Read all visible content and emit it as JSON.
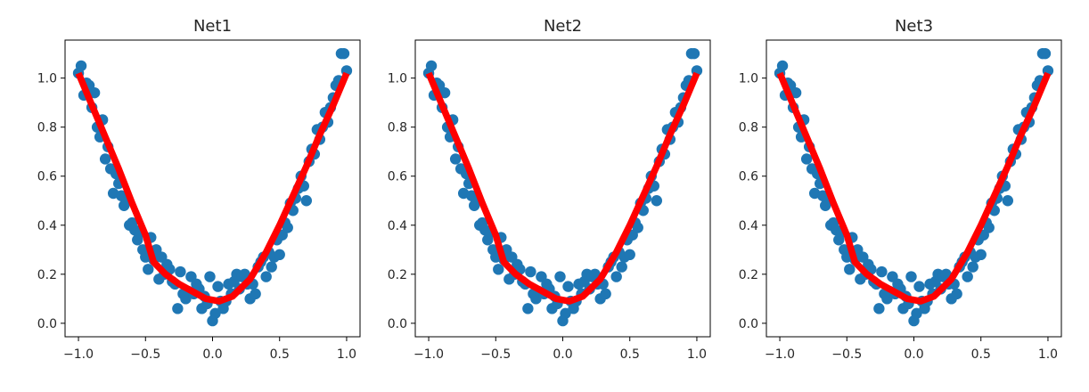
{
  "chart_data": [
    {
      "type": "scatter",
      "title": "Net1",
      "xlabel": "",
      "ylabel": "",
      "xlim": [
        -1.1,
        1.1
      ],
      "ylim": [
        -0.055,
        1.155
      ],
      "xticks": [
        -1.0,
        -0.5,
        0.0,
        0.5,
        1.0
      ],
      "xtick_labels": [
        "−1.0",
        "−0.5",
        "0.0",
        "0.5",
        "1.0"
      ],
      "yticks": [
        0.0,
        0.2,
        0.4,
        0.6,
        0.8,
        1.0
      ],
      "ytick_labels": [
        "0.0",
        "0.2",
        "0.4",
        "0.6",
        "0.8",
        "1.0"
      ],
      "grid": false,
      "series": [
        {
          "kind": "scatter",
          "color": "#1f77b4",
          "x": [
            -1.0,
            -0.98,
            -0.96,
            -0.94,
            -0.92,
            -0.9,
            -0.88,
            -0.86,
            -0.84,
            -0.82,
            -0.8,
            -0.78,
            -0.76,
            -0.74,
            -0.72,
            -0.7,
            -0.68,
            -0.66,
            -0.64,
            -0.62,
            -0.6,
            -0.58,
            -0.56,
            -0.54,
            -0.52,
            -0.5,
            -0.48,
            -0.46,
            -0.44,
            -0.42,
            -0.4,
            -0.38,
            -0.36,
            -0.34,
            -0.32,
            -0.3,
            -0.28,
            -0.26,
            -0.24,
            -0.22,
            -0.2,
            -0.18,
            -0.16,
            -0.14,
            -0.12,
            -0.1,
            -0.08,
            -0.06,
            -0.04,
            -0.02,
            0.0,
            0.02,
            0.04,
            0.06,
            0.08,
            0.1,
            0.12,
            0.14,
            0.16,
            0.18,
            0.2,
            0.22,
            0.24,
            0.26,
            0.28,
            0.3,
            0.32,
            0.34,
            0.36,
            0.38,
            0.4,
            0.42,
            0.44,
            0.46,
            0.48,
            0.5,
            0.52,
            0.54,
            0.56,
            0.58,
            0.6,
            0.62,
            0.64,
            0.66,
            0.68,
            0.7,
            0.72,
            0.74,
            0.76,
            0.78,
            0.8,
            0.82,
            0.84,
            0.86,
            0.88,
            0.9,
            0.92,
            0.94,
            0.96,
            0.98,
            1.0
          ],
          "y": [
            1.02,
            1.05,
            0.93,
            0.98,
            0.97,
            0.88,
            0.94,
            0.8,
            0.76,
            0.83,
            0.67,
            0.72,
            0.63,
            0.53,
            0.61,
            0.57,
            0.52,
            0.48,
            0.5,
            0.4,
            0.41,
            0.38,
            0.34,
            0.37,
            0.3,
            0.27,
            0.22,
            0.35,
            0.26,
            0.3,
            0.18,
            0.27,
            0.2,
            0.24,
            0.22,
            0.17,
            0.16,
            0.06,
            0.21,
            0.12,
            0.1,
            0.13,
            0.19,
            0.12,
            0.16,
            0.14,
            0.06,
            0.11,
            0.08,
            0.19,
            0.01,
            0.04,
            0.15,
            0.09,
            0.06,
            0.09,
            0.16,
            0.12,
            0.17,
            0.2,
            0.14,
            0.19,
            0.2,
            0.16,
            0.1,
            0.16,
            0.12,
            0.23,
            0.25,
            0.27,
            0.19,
            0.29,
            0.23,
            0.27,
            0.34,
            0.28,
            0.36,
            0.41,
            0.39,
            0.49,
            0.46,
            0.51,
            0.55,
            0.6,
            0.56,
            0.5,
            0.66,
            0.71,
            0.69,
            0.79,
            0.75,
            0.8,
            0.86,
            0.82,
            0.88,
            0.92,
            0.97,
            0.99,
            1.1,
            1.1,
            1.03
          ]
        },
        {
          "kind": "line",
          "color": "#ff0000",
          "x": [
            -1.0,
            -0.9,
            -0.8,
            -0.7,
            -0.6,
            -0.5,
            -0.44,
            -0.35,
            -0.25,
            -0.15,
            -0.05,
            0.05,
            0.15,
            0.28,
            0.4,
            0.5,
            0.6,
            0.7,
            0.8,
            0.9,
            1.0
          ],
          "y": [
            1.02,
            0.89,
            0.76,
            0.63,
            0.49,
            0.36,
            0.25,
            0.2,
            0.16,
            0.13,
            0.1,
            0.09,
            0.11,
            0.18,
            0.29,
            0.4,
            0.52,
            0.64,
            0.77,
            0.89,
            1.02
          ]
        }
      ]
    },
    {
      "type": "scatter",
      "title": "Net2",
      "xlabel": "",
      "ylabel": "",
      "xlim": [
        -1.1,
        1.1
      ],
      "ylim": [
        -0.055,
        1.155
      ],
      "xticks": [
        -1.0,
        -0.5,
        0.0,
        0.5,
        1.0
      ],
      "xtick_labels": [
        "−1.0",
        "−0.5",
        "0.0",
        "0.5",
        "1.0"
      ],
      "yticks": [
        0.0,
        0.2,
        0.4,
        0.6,
        0.8,
        1.0
      ],
      "ytick_labels": [
        "0.0",
        "0.2",
        "0.4",
        "0.6",
        "0.8",
        "1.0"
      ],
      "grid": false,
      "series": [
        {
          "kind": "scatter",
          "color": "#1f77b4",
          "x": [
            -1.0,
            -0.98,
            -0.96,
            -0.94,
            -0.92,
            -0.9,
            -0.88,
            -0.86,
            -0.84,
            -0.82,
            -0.8,
            -0.78,
            -0.76,
            -0.74,
            -0.72,
            -0.7,
            -0.68,
            -0.66,
            -0.64,
            -0.62,
            -0.6,
            -0.58,
            -0.56,
            -0.54,
            -0.52,
            -0.5,
            -0.48,
            -0.46,
            -0.44,
            -0.42,
            -0.4,
            -0.38,
            -0.36,
            -0.34,
            -0.32,
            -0.3,
            -0.28,
            -0.26,
            -0.24,
            -0.22,
            -0.2,
            -0.18,
            -0.16,
            -0.14,
            -0.12,
            -0.1,
            -0.08,
            -0.06,
            -0.04,
            -0.02,
            0.0,
            0.02,
            0.04,
            0.06,
            0.08,
            0.1,
            0.12,
            0.14,
            0.16,
            0.18,
            0.2,
            0.22,
            0.24,
            0.26,
            0.28,
            0.3,
            0.32,
            0.34,
            0.36,
            0.38,
            0.4,
            0.42,
            0.44,
            0.46,
            0.48,
            0.5,
            0.52,
            0.54,
            0.56,
            0.58,
            0.6,
            0.62,
            0.64,
            0.66,
            0.68,
            0.7,
            0.72,
            0.74,
            0.76,
            0.78,
            0.8,
            0.82,
            0.84,
            0.86,
            0.88,
            0.9,
            0.92,
            0.94,
            0.96,
            0.98,
            1.0
          ],
          "y": [
            1.02,
            1.05,
            0.93,
            0.98,
            0.97,
            0.88,
            0.94,
            0.8,
            0.76,
            0.83,
            0.67,
            0.72,
            0.63,
            0.53,
            0.61,
            0.57,
            0.52,
            0.48,
            0.5,
            0.4,
            0.41,
            0.38,
            0.34,
            0.37,
            0.3,
            0.27,
            0.22,
            0.35,
            0.26,
            0.3,
            0.18,
            0.27,
            0.2,
            0.24,
            0.22,
            0.17,
            0.16,
            0.06,
            0.21,
            0.12,
            0.1,
            0.13,
            0.19,
            0.12,
            0.16,
            0.14,
            0.06,
            0.11,
            0.08,
            0.19,
            0.01,
            0.04,
            0.15,
            0.09,
            0.06,
            0.09,
            0.16,
            0.12,
            0.17,
            0.2,
            0.14,
            0.19,
            0.2,
            0.16,
            0.1,
            0.16,
            0.12,
            0.23,
            0.25,
            0.27,
            0.19,
            0.29,
            0.23,
            0.27,
            0.34,
            0.28,
            0.36,
            0.41,
            0.39,
            0.49,
            0.46,
            0.51,
            0.55,
            0.6,
            0.56,
            0.5,
            0.66,
            0.71,
            0.69,
            0.79,
            0.75,
            0.8,
            0.86,
            0.82,
            0.88,
            0.92,
            0.97,
            0.99,
            1.1,
            1.1,
            1.03
          ]
        },
        {
          "kind": "line",
          "color": "#ff0000",
          "x": [
            -1.0,
            -0.9,
            -0.8,
            -0.7,
            -0.6,
            -0.5,
            -0.44,
            -0.35,
            -0.25,
            -0.15,
            -0.05,
            0.05,
            0.15,
            0.28,
            0.4,
            0.5,
            0.6,
            0.7,
            0.8,
            0.9,
            1.0
          ],
          "y": [
            1.02,
            0.89,
            0.76,
            0.63,
            0.49,
            0.36,
            0.25,
            0.2,
            0.16,
            0.13,
            0.1,
            0.09,
            0.11,
            0.18,
            0.29,
            0.4,
            0.52,
            0.64,
            0.77,
            0.89,
            1.02
          ]
        }
      ]
    },
    {
      "type": "scatter",
      "title": "Net3",
      "xlabel": "",
      "ylabel": "",
      "xlim": [
        -1.1,
        1.1
      ],
      "ylim": [
        -0.055,
        1.155
      ],
      "xticks": [
        -1.0,
        -0.5,
        0.0,
        0.5,
        1.0
      ],
      "xtick_labels": [
        "−1.0",
        "−0.5",
        "0.0",
        "0.5",
        "1.0"
      ],
      "yticks": [
        0.0,
        0.2,
        0.4,
        0.6,
        0.8,
        1.0
      ],
      "ytick_labels": [
        "0.0",
        "0.2",
        "0.4",
        "0.6",
        "0.8",
        "1.0"
      ],
      "grid": false,
      "series": [
        {
          "kind": "scatter",
          "color": "#1f77b4",
          "x": [
            -1.0,
            -0.98,
            -0.96,
            -0.94,
            -0.92,
            -0.9,
            -0.88,
            -0.86,
            -0.84,
            -0.82,
            -0.8,
            -0.78,
            -0.76,
            -0.74,
            -0.72,
            -0.7,
            -0.68,
            -0.66,
            -0.64,
            -0.62,
            -0.6,
            -0.58,
            -0.56,
            -0.54,
            -0.52,
            -0.5,
            -0.48,
            -0.46,
            -0.44,
            -0.42,
            -0.4,
            -0.38,
            -0.36,
            -0.34,
            -0.32,
            -0.3,
            -0.28,
            -0.26,
            -0.24,
            -0.22,
            -0.2,
            -0.18,
            -0.16,
            -0.14,
            -0.12,
            -0.1,
            -0.08,
            -0.06,
            -0.04,
            -0.02,
            0.0,
            0.02,
            0.04,
            0.06,
            0.08,
            0.1,
            0.12,
            0.14,
            0.16,
            0.18,
            0.2,
            0.22,
            0.24,
            0.26,
            0.28,
            0.3,
            0.32,
            0.34,
            0.36,
            0.38,
            0.4,
            0.42,
            0.44,
            0.46,
            0.48,
            0.5,
            0.52,
            0.54,
            0.56,
            0.58,
            0.6,
            0.62,
            0.64,
            0.66,
            0.68,
            0.7,
            0.72,
            0.74,
            0.76,
            0.78,
            0.8,
            0.82,
            0.84,
            0.86,
            0.88,
            0.9,
            0.92,
            0.94,
            0.96,
            0.98,
            1.0
          ],
          "y": [
            1.02,
            1.05,
            0.93,
            0.98,
            0.97,
            0.88,
            0.94,
            0.8,
            0.76,
            0.83,
            0.67,
            0.72,
            0.63,
            0.53,
            0.61,
            0.57,
            0.52,
            0.48,
            0.5,
            0.4,
            0.41,
            0.38,
            0.34,
            0.37,
            0.3,
            0.27,
            0.22,
            0.35,
            0.26,
            0.3,
            0.18,
            0.27,
            0.2,
            0.24,
            0.22,
            0.17,
            0.16,
            0.06,
            0.21,
            0.12,
            0.1,
            0.13,
            0.19,
            0.12,
            0.16,
            0.14,
            0.06,
            0.11,
            0.08,
            0.19,
            0.01,
            0.04,
            0.15,
            0.09,
            0.06,
            0.09,
            0.16,
            0.12,
            0.17,
            0.2,
            0.14,
            0.19,
            0.2,
            0.16,
            0.1,
            0.16,
            0.12,
            0.23,
            0.25,
            0.27,
            0.19,
            0.29,
            0.23,
            0.27,
            0.34,
            0.28,
            0.36,
            0.41,
            0.39,
            0.49,
            0.46,
            0.51,
            0.55,
            0.6,
            0.56,
            0.5,
            0.66,
            0.71,
            0.69,
            0.79,
            0.75,
            0.8,
            0.86,
            0.82,
            0.88,
            0.92,
            0.97,
            0.99,
            1.1,
            1.1,
            1.03
          ]
        },
        {
          "kind": "line",
          "color": "#ff0000",
          "x": [
            -1.0,
            -0.9,
            -0.8,
            -0.7,
            -0.6,
            -0.5,
            -0.44,
            -0.35,
            -0.25,
            -0.15,
            -0.05,
            0.05,
            0.15,
            0.28,
            0.4,
            0.5,
            0.6,
            0.7,
            0.8,
            0.9,
            1.0
          ],
          "y": [
            1.02,
            0.89,
            0.76,
            0.63,
            0.49,
            0.36,
            0.25,
            0.2,
            0.16,
            0.13,
            0.1,
            0.09,
            0.11,
            0.18,
            0.29,
            0.4,
            0.52,
            0.64,
            0.77,
            0.89,
            1.02
          ]
        }
      ]
    }
  ]
}
